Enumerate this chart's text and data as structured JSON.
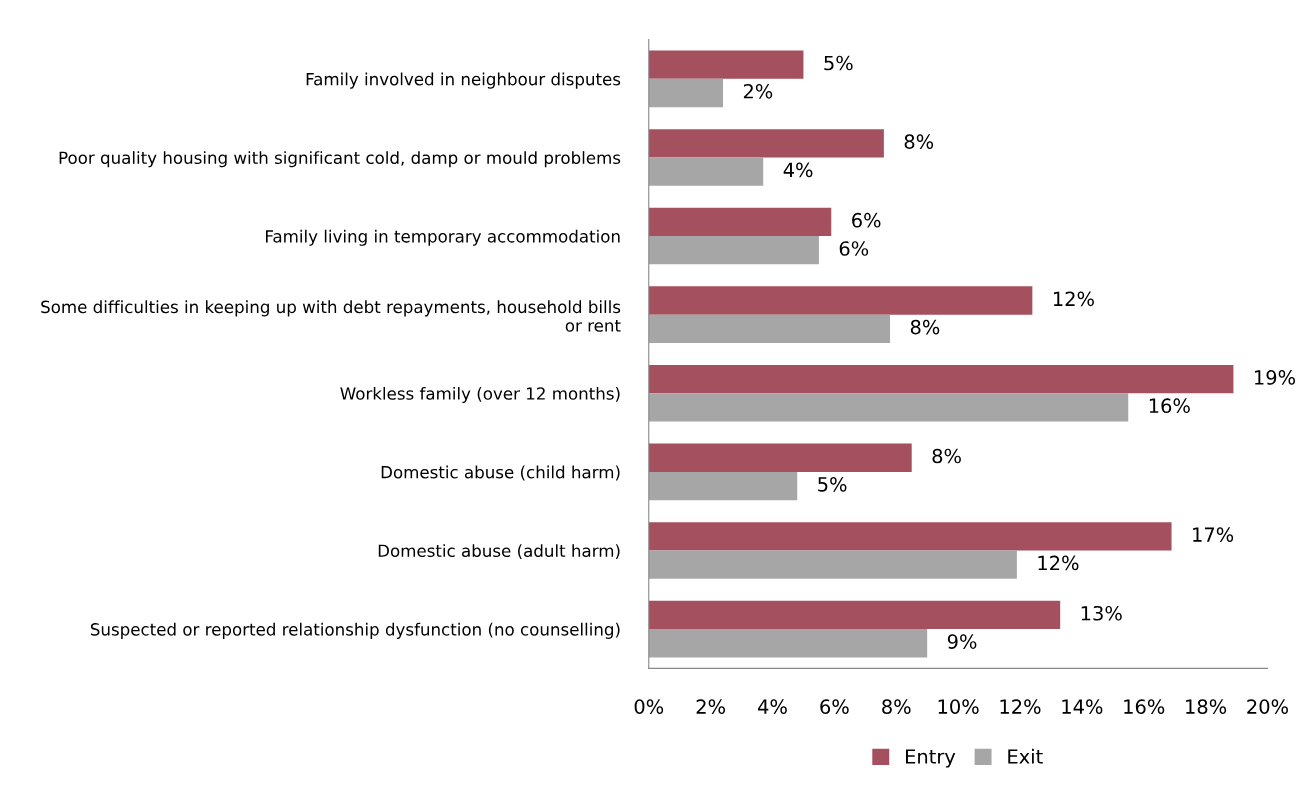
{
  "chart_data": {
    "type": "bar",
    "orientation": "horizontal",
    "categories": [
      "Family involved in neighbour disputes",
      "Poor quality housing with significant cold, damp or mould problems",
      "Family living in temporary accommodation",
      "Some difficulties in keeping up with debt repayments, household bills\nor rent",
      "Workless family (over 12 months)",
      "Domestic abuse (child harm)",
      "Domestic abuse (adult harm)",
      "Suspected or reported relationship dysfunction (no counselling)"
    ],
    "series": [
      {
        "name": "Entry",
        "color": "#a4505e",
        "values": [
          5.0,
          7.6,
          5.9,
          12.4,
          18.9,
          8.5,
          16.9,
          13.3
        ],
        "value_labels": [
          "5%",
          "8%",
          "6%",
          "12%",
          "19%",
          "8%",
          "17%",
          "13%"
        ]
      },
      {
        "name": "Exit",
        "color": "#a6a6a6",
        "values": [
          2.4,
          3.7,
          5.5,
          7.8,
          15.5,
          4.8,
          11.9,
          9.0
        ],
        "value_labels": [
          "2%",
          "4%",
          "6%",
          "8%",
          "16%",
          "5%",
          "12%",
          "9%"
        ]
      }
    ],
    "xlim": [
      0,
      20
    ],
    "xticks": [
      {
        "value": 0,
        "label": "0%"
      },
      {
        "value": 2,
        "label": "2%"
      },
      {
        "value": 4,
        "label": "4%"
      },
      {
        "value": 6,
        "label": "6%"
      },
      {
        "value": 8,
        "label": "8%"
      },
      {
        "value": 10,
        "label": "10%"
      },
      {
        "value": 12,
        "label": "12%"
      },
      {
        "value": 14,
        "label": "14%"
      },
      {
        "value": 16,
        "label": "16%"
      },
      {
        "value": 18,
        "label": "18%"
      },
      {
        "value": 20,
        "label": "20%"
      }
    ],
    "grid": false,
    "legend": "bottom"
  }
}
